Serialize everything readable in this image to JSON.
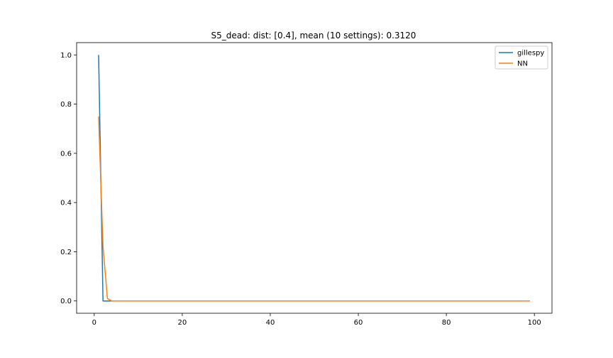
{
  "chart_data": {
    "type": "line",
    "title": "S5_dead: dist: [0.4], mean (10 settings): 0.3120",
    "xlabel": "",
    "ylabel": "",
    "xlim": [
      -4,
      104
    ],
    "ylim": [
      -0.05,
      1.05
    ],
    "x_ticks": [
      0,
      20,
      40,
      60,
      80,
      100
    ],
    "x_tick_labels": [
      "0",
      "20",
      "40",
      "60",
      "80",
      "100"
    ],
    "y_ticks": [
      0.0,
      0.2,
      0.4,
      0.6,
      0.8,
      1.0
    ],
    "y_tick_labels": [
      "0.0",
      "0.2",
      "0.4",
      "0.6",
      "0.8",
      "1.0"
    ],
    "grid": false,
    "legend_position": "top-right",
    "series": [
      {
        "name": "gillespy",
        "color": "#1f77b4",
        "x": [
          1,
          2,
          3,
          4,
          5,
          99
        ],
        "y": [
          1.0,
          0.0,
          0.0,
          0.0,
          0.0,
          0.0
        ]
      },
      {
        "name": "NN",
        "color": "#ff7f0e",
        "x": [
          1,
          2,
          3,
          4,
          5,
          99
        ],
        "y": [
          0.75,
          0.22,
          0.01,
          0.0,
          0.0,
          0.0
        ]
      }
    ]
  }
}
